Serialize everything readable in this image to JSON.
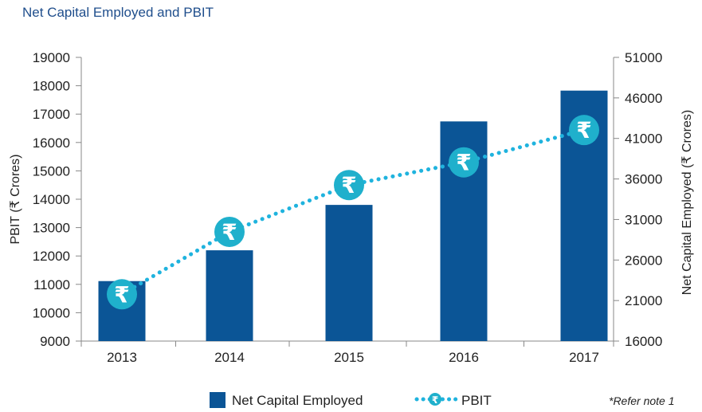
{
  "colors": {
    "bar": "#0b5596",
    "line": "#1fb3de",
    "marker": "#1fb0cc",
    "title": "#1f4e8c",
    "axis": "#888888"
  },
  "chart_data": {
    "type": "bar",
    "title": "Net Capital Employed and PBIT",
    "categories": [
      "2013",
      "2014",
      "2015",
      "2016",
      "2017"
    ],
    "series": [
      {
        "name": "Net Capital Employed",
        "type": "bar",
        "axis": "right",
        "values": [
          23400,
          27200,
          32800,
          43100,
          46900
        ]
      },
      {
        "name": "PBIT",
        "type": "line",
        "axis": "left",
        "values": [
          10650,
          12850,
          14500,
          15300,
          16440
        ]
      }
    ],
    "ylabel_left": "PBIT (₹ Crores)",
    "ylabel_right": "Net Capital Employed (₹ Crores)",
    "ylim_left": [
      9000,
      19000
    ],
    "ylim_right": [
      16000,
      51000
    ],
    "yticks_left": [
      "9000",
      "10000",
      "11000",
      "12000",
      "13000",
      "14000",
      "15000",
      "16000",
      "17000",
      "18000",
      "19000"
    ],
    "yticks_right": [
      "16000",
      "21000",
      "26000",
      "31000",
      "36000",
      "41000",
      "46000",
      "51000"
    ],
    "marker_symbol": "₹",
    "legend_position": "bottom",
    "grid": false,
    "note": "*Refer note 1"
  }
}
